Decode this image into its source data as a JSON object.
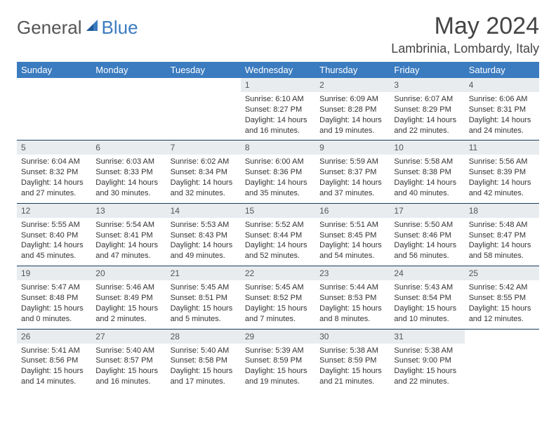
{
  "logo": {
    "part1": "General",
    "part2": "Blue"
  },
  "title": "May 2024",
  "location": "Lambrinia, Lombardy, Italy",
  "colors": {
    "header_bg": "#3b7bbf",
    "header_text": "#ffffff",
    "daynum_bg": "#e8ecef",
    "border": "#1a3d5c",
    "text": "#333333"
  },
  "weekdays": [
    "Sunday",
    "Monday",
    "Tuesday",
    "Wednesday",
    "Thursday",
    "Friday",
    "Saturday"
  ],
  "weeks": [
    [
      {
        "n": "",
        "sr": "",
        "ss": "",
        "dl": ""
      },
      {
        "n": "",
        "sr": "",
        "ss": "",
        "dl": ""
      },
      {
        "n": "",
        "sr": "",
        "ss": "",
        "dl": ""
      },
      {
        "n": "1",
        "sr": "Sunrise: 6:10 AM",
        "ss": "Sunset: 8:27 PM",
        "dl": "Daylight: 14 hours and 16 minutes."
      },
      {
        "n": "2",
        "sr": "Sunrise: 6:09 AM",
        "ss": "Sunset: 8:28 PM",
        "dl": "Daylight: 14 hours and 19 minutes."
      },
      {
        "n": "3",
        "sr": "Sunrise: 6:07 AM",
        "ss": "Sunset: 8:29 PM",
        "dl": "Daylight: 14 hours and 22 minutes."
      },
      {
        "n": "4",
        "sr": "Sunrise: 6:06 AM",
        "ss": "Sunset: 8:31 PM",
        "dl": "Daylight: 14 hours and 24 minutes."
      }
    ],
    [
      {
        "n": "5",
        "sr": "Sunrise: 6:04 AM",
        "ss": "Sunset: 8:32 PM",
        "dl": "Daylight: 14 hours and 27 minutes."
      },
      {
        "n": "6",
        "sr": "Sunrise: 6:03 AM",
        "ss": "Sunset: 8:33 PM",
        "dl": "Daylight: 14 hours and 30 minutes."
      },
      {
        "n": "7",
        "sr": "Sunrise: 6:02 AM",
        "ss": "Sunset: 8:34 PM",
        "dl": "Daylight: 14 hours and 32 minutes."
      },
      {
        "n": "8",
        "sr": "Sunrise: 6:00 AM",
        "ss": "Sunset: 8:36 PM",
        "dl": "Daylight: 14 hours and 35 minutes."
      },
      {
        "n": "9",
        "sr": "Sunrise: 5:59 AM",
        "ss": "Sunset: 8:37 PM",
        "dl": "Daylight: 14 hours and 37 minutes."
      },
      {
        "n": "10",
        "sr": "Sunrise: 5:58 AM",
        "ss": "Sunset: 8:38 PM",
        "dl": "Daylight: 14 hours and 40 minutes."
      },
      {
        "n": "11",
        "sr": "Sunrise: 5:56 AM",
        "ss": "Sunset: 8:39 PM",
        "dl": "Daylight: 14 hours and 42 minutes."
      }
    ],
    [
      {
        "n": "12",
        "sr": "Sunrise: 5:55 AM",
        "ss": "Sunset: 8:40 PM",
        "dl": "Daylight: 14 hours and 45 minutes."
      },
      {
        "n": "13",
        "sr": "Sunrise: 5:54 AM",
        "ss": "Sunset: 8:41 PM",
        "dl": "Daylight: 14 hours and 47 minutes."
      },
      {
        "n": "14",
        "sr": "Sunrise: 5:53 AM",
        "ss": "Sunset: 8:43 PM",
        "dl": "Daylight: 14 hours and 49 minutes."
      },
      {
        "n": "15",
        "sr": "Sunrise: 5:52 AM",
        "ss": "Sunset: 8:44 PM",
        "dl": "Daylight: 14 hours and 52 minutes."
      },
      {
        "n": "16",
        "sr": "Sunrise: 5:51 AM",
        "ss": "Sunset: 8:45 PM",
        "dl": "Daylight: 14 hours and 54 minutes."
      },
      {
        "n": "17",
        "sr": "Sunrise: 5:50 AM",
        "ss": "Sunset: 8:46 PM",
        "dl": "Daylight: 14 hours and 56 minutes."
      },
      {
        "n": "18",
        "sr": "Sunrise: 5:48 AM",
        "ss": "Sunset: 8:47 PM",
        "dl": "Daylight: 14 hours and 58 minutes."
      }
    ],
    [
      {
        "n": "19",
        "sr": "Sunrise: 5:47 AM",
        "ss": "Sunset: 8:48 PM",
        "dl": "Daylight: 15 hours and 0 minutes."
      },
      {
        "n": "20",
        "sr": "Sunrise: 5:46 AM",
        "ss": "Sunset: 8:49 PM",
        "dl": "Daylight: 15 hours and 2 minutes."
      },
      {
        "n": "21",
        "sr": "Sunrise: 5:45 AM",
        "ss": "Sunset: 8:51 PM",
        "dl": "Daylight: 15 hours and 5 minutes."
      },
      {
        "n": "22",
        "sr": "Sunrise: 5:45 AM",
        "ss": "Sunset: 8:52 PM",
        "dl": "Daylight: 15 hours and 7 minutes."
      },
      {
        "n": "23",
        "sr": "Sunrise: 5:44 AM",
        "ss": "Sunset: 8:53 PM",
        "dl": "Daylight: 15 hours and 8 minutes."
      },
      {
        "n": "24",
        "sr": "Sunrise: 5:43 AM",
        "ss": "Sunset: 8:54 PM",
        "dl": "Daylight: 15 hours and 10 minutes."
      },
      {
        "n": "25",
        "sr": "Sunrise: 5:42 AM",
        "ss": "Sunset: 8:55 PM",
        "dl": "Daylight: 15 hours and 12 minutes."
      }
    ],
    [
      {
        "n": "26",
        "sr": "Sunrise: 5:41 AM",
        "ss": "Sunset: 8:56 PM",
        "dl": "Daylight: 15 hours and 14 minutes."
      },
      {
        "n": "27",
        "sr": "Sunrise: 5:40 AM",
        "ss": "Sunset: 8:57 PM",
        "dl": "Daylight: 15 hours and 16 minutes."
      },
      {
        "n": "28",
        "sr": "Sunrise: 5:40 AM",
        "ss": "Sunset: 8:58 PM",
        "dl": "Daylight: 15 hours and 17 minutes."
      },
      {
        "n": "29",
        "sr": "Sunrise: 5:39 AM",
        "ss": "Sunset: 8:59 PM",
        "dl": "Daylight: 15 hours and 19 minutes."
      },
      {
        "n": "30",
        "sr": "Sunrise: 5:38 AM",
        "ss": "Sunset: 8:59 PM",
        "dl": "Daylight: 15 hours and 21 minutes."
      },
      {
        "n": "31",
        "sr": "Sunrise: 5:38 AM",
        "ss": "Sunset: 9:00 PM",
        "dl": "Daylight: 15 hours and 22 minutes."
      },
      {
        "n": "",
        "sr": "",
        "ss": "",
        "dl": ""
      }
    ]
  ]
}
